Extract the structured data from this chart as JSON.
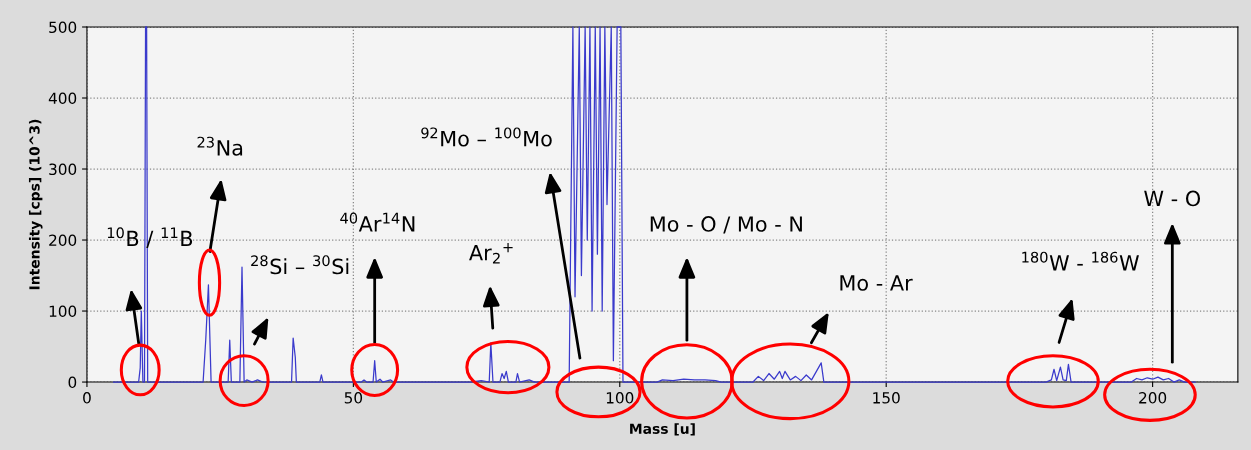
{
  "chart_data": {
    "type": "line",
    "xlabel": "Mass [u]",
    "ylabel": "Intensity [cps] (10^3)",
    "xlim": [
      0,
      216
    ],
    "ylim": [
      0,
      500
    ],
    "xticks": [
      0,
      50,
      100,
      150,
      200
    ],
    "yticks": [
      0,
      100,
      200,
      300,
      400,
      500
    ],
    "grid": true,
    "series": [
      {
        "color": "#3a3acc",
        "x": [
          5,
          9.7,
          10,
          10.2,
          10.5,
          10.8,
          11,
          11.2,
          11.4,
          12,
          21.8,
          22.3,
          22.8,
          23.3,
          24,
          26.5,
          26.8,
          27.1,
          28.7,
          29.1,
          29.5,
          30,
          31,
          32,
          33,
          38.4,
          38.7,
          39.1,
          39.3,
          43.7,
          44,
          44.3,
          51.5,
          52,
          52.5,
          53.7,
          54,
          54.3,
          55,
          55.5,
          57,
          57.5,
          72,
          74,
          75.5,
          75.8,
          76.2,
          77.5,
          77.9,
          78.3,
          78.7,
          79.1,
          80.5,
          80.8,
          81.2,
          83,
          84,
          90.5,
          91.2,
          91.6,
          92.4,
          92.8,
          93.5,
          93.9,
          94.4,
          94.8,
          95.4,
          95.8,
          96.3,
          96.7,
          97.2,
          97.6,
          98.4,
          98.8,
          99.5,
          100.2,
          100.6,
          101.5,
          107,
          108,
          110,
          112,
          114,
          116,
          118,
          119,
          125,
          126,
          127,
          128,
          129,
          130,
          130.5,
          131,
          132,
          133,
          134,
          135,
          136,
          137.8,
          138.3,
          140,
          150,
          180,
          181,
          181.5,
          182,
          182.7,
          183.2,
          183.8,
          184.2,
          184.7,
          196,
          197,
          198,
          199,
          200,
          201,
          202,
          203,
          204,
          205,
          206,
          208
        ],
        "values": [
          0,
          0,
          20,
          100,
          0,
          0,
          500,
          500,
          0,
          0,
          0,
          60,
          137,
          0,
          0,
          0,
          59,
          0,
          0,
          162,
          0,
          3,
          0,
          3,
          0,
          0,
          62,
          35,
          0,
          0,
          10,
          0,
          0,
          3,
          0,
          0,
          30,
          0,
          4,
          0,
          3,
          0,
          0,
          2,
          0,
          55,
          0,
          0,
          12,
          5,
          15,
          0,
          0,
          12,
          0,
          3,
          0,
          0,
          500,
          120,
          500,
          150,
          500,
          200,
          500,
          100,
          500,
          180,
          500,
          100,
          500,
          250,
          500,
          30,
          500,
          500,
          0,
          0,
          0,
          3,
          2,
          4,
          3,
          3,
          2,
          0,
          0,
          8,
          2,
          12,
          4,
          15,
          5,
          15,
          3,
          8,
          2,
          10,
          3,
          27,
          0,
          0,
          0,
          0,
          3,
          18,
          2,
          21,
          3,
          2,
          25,
          0,
          0,
          5,
          3,
          6,
          4,
          7,
          3,
          5,
          0,
          3,
          0,
          0
        ]
      }
    ],
    "annotations": [
      "$^{10}$B / $^{11}$B",
      "$^{23}$Na",
      "$^{28}$Si – $^{30}$Si",
      "$^{40}$Ar$^{14}$N",
      "Ar$_{2}$$^{+}$",
      "$^{92}$Mo – $^{100}$Mo",
      "Mo - O / Mo - N",
      "Mo - Ar",
      "$^{180}$W - $^{186}$W",
      "W - O"
    ]
  }
}
